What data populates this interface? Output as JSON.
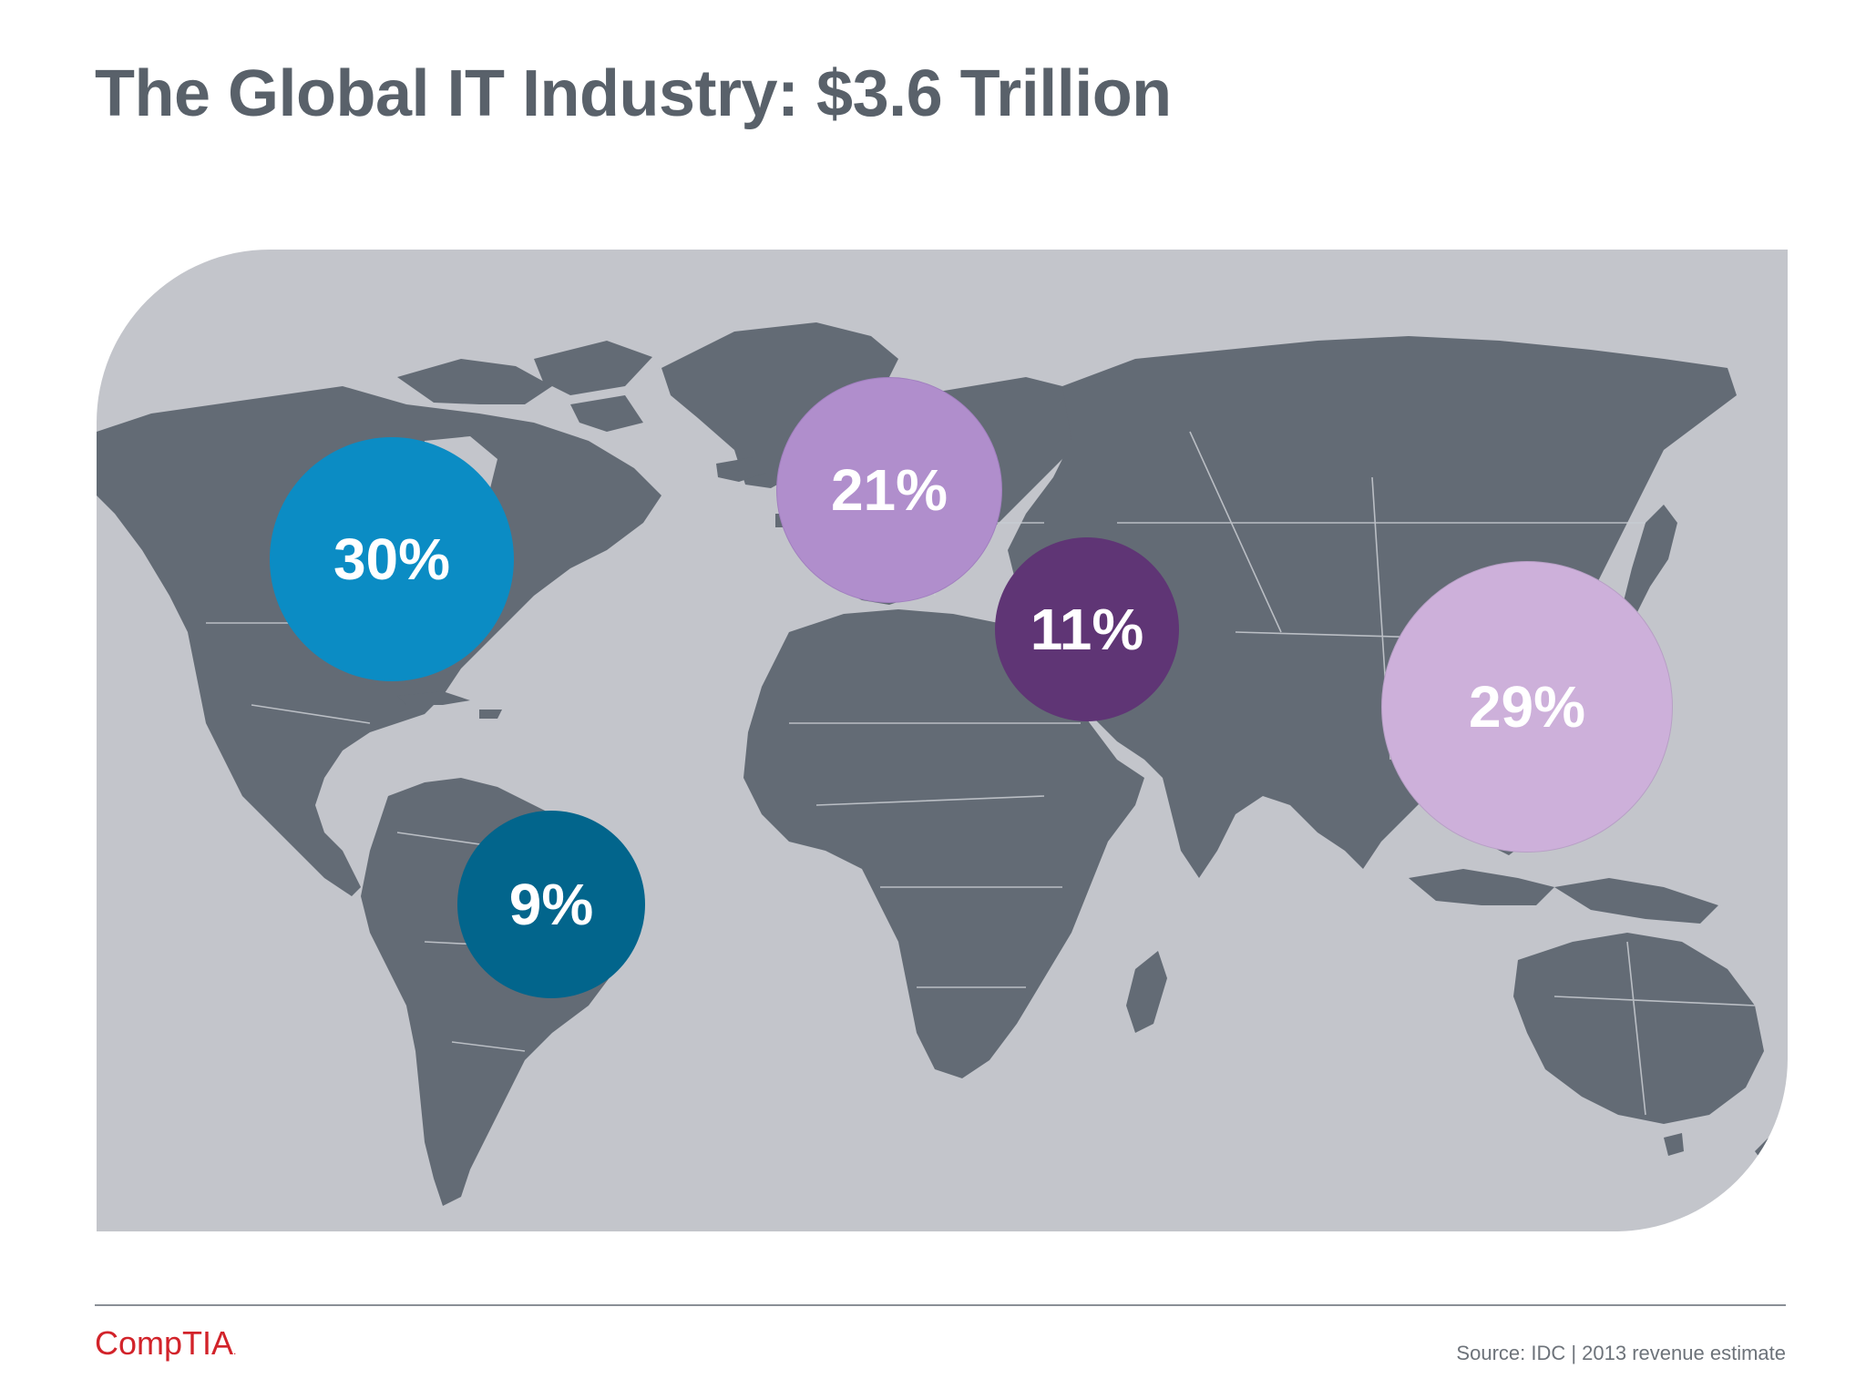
{
  "slide": {
    "title": "The Global IT Industry: $3.6 Trillion",
    "source": "Source: IDC | 2013 revenue estimate",
    "logo_text": "CompTIA",
    "logo_mark": "."
  },
  "map": {
    "land_color": "#636b75",
    "ocean_color": "#c3c5cb",
    "regions": [
      {
        "value": "30%",
        "color": "#0b8cc4"
      },
      {
        "value": "21%",
        "color": "#b08ecc"
      },
      {
        "value": "11%",
        "color": "#5f3575"
      },
      {
        "value": "29%",
        "color": "#cdb0da"
      },
      {
        "value": "9%",
        "color": "#02658c"
      }
    ]
  }
}
